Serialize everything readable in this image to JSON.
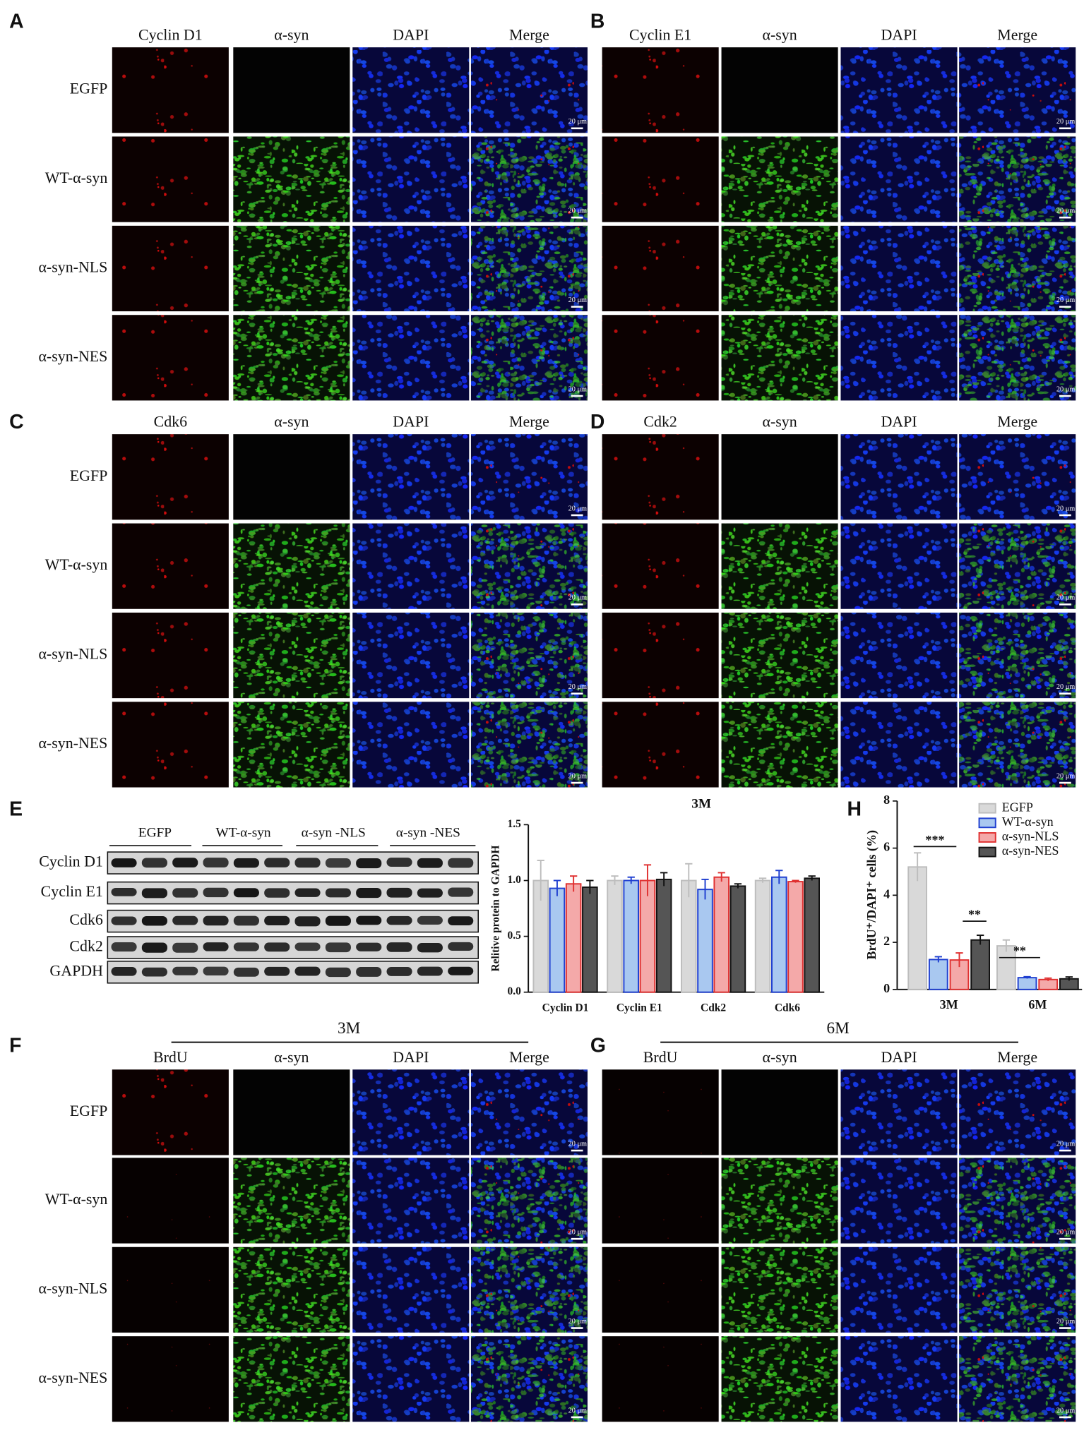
{
  "figure": {
    "panels": [
      {
        "letter": "A",
        "columns": [
          "Cyclin D1",
          "α-syn",
          "DAPI",
          "Merge"
        ],
        "rows": [
          "EGFP",
          "WT-α-syn",
          "α-syn-NLS",
          "α-syn-NES"
        ]
      },
      {
        "letter": "B",
        "columns": [
          "Cyclin E1",
          "α-syn",
          "DAPI",
          "Merge"
        ]
      },
      {
        "letter": "C",
        "columns": [
          "Cdk6",
          "α-syn",
          "DAPI",
          "Merge"
        ],
        "rows": [
          "EGFP",
          "WT-α-syn",
          "α-syn-NLS",
          "α-syn-NES"
        ]
      },
      {
        "letter": "D",
        "columns": [
          "Cdk2",
          "α-syn",
          "DAPI",
          "Merge"
        ]
      },
      {
        "letter": "F",
        "title": "3M",
        "columns": [
          "BrdU",
          "α-syn",
          "DAPI",
          "Merge"
        ],
        "rows": [
          "EGFP",
          "WT-α-syn",
          "α-syn-NLS",
          "α-syn-NES"
        ]
      },
      {
        "letter": "G",
        "title": "6M",
        "columns": [
          "BrdU",
          "α-syn",
          "DAPI",
          "Merge"
        ]
      }
    ],
    "scale_bar": "20 μm",
    "blot": {
      "letter": "E",
      "groups": [
        "EGFP",
        "WT-α-syn",
        "α-syn -NLS",
        "α-syn -NES"
      ],
      "proteins": [
        "Cyclin D1",
        "Cyclin E1",
        "Cdk6",
        "Cdk2",
        "GAPDH"
      ]
    }
  },
  "chart_data": [
    {
      "type": "bar",
      "title": "3M",
      "y_label": "Relitive protein to GAPDH",
      "categories": [
        "Cyclin D1",
        "Cyclin E1",
        "Cdk2",
        "Cdk6"
      ],
      "ylim": [
        0,
        1.5
      ],
      "yticks": [
        {
          "value": 0,
          "label": "0.0"
        },
        0.5,
        {
          "value": 1,
          "label": "1.0"
        },
        1.5
      ],
      "series": [
        {
          "color": "#d9d9d9",
          "edge_color": "#bdbdbd",
          "values": [
            1.0,
            1.0,
            1.0,
            1.0
          ],
          "errors": [
            0.18,
            0.04,
            0.15,
            0.02
          ]
        },
        {
          "color": "#a9c8f0",
          "edge_color": "#1f3fd0",
          "values": [
            0.93,
            1.0,
            0.92,
            1.03
          ],
          "errors": [
            0.07,
            0.03,
            0.09,
            0.06
          ]
        },
        {
          "color": "#f4a9a9",
          "edge_color": "#e03030",
          "values": [
            0.97,
            1.0,
            1.03,
            0.99
          ],
          "errors": [
            0.07,
            0.14,
            0.04,
            0.01
          ]
        },
        {
          "color": "#555555",
          "edge_color": "#111111",
          "values": [
            0.94,
            1.01,
            0.95,
            1.02
          ],
          "errors": [
            0.06,
            0.06,
            0.02,
            0.02
          ]
        }
      ]
    },
    {
      "type": "bar",
      "panel_label": "H",
      "y_label": "BrdU⁺/DAPI⁺ cells (%)",
      "categories": [
        "3M",
        "6M"
      ],
      "ylim": [
        0,
        8
      ],
      "yticks": [
        0,
        2,
        4,
        6,
        8
      ],
      "legend": "upper right",
      "annotations": [
        "***",
        "**",
        "**"
      ],
      "series": [
        {
          "name": "EGFP",
          "color": "#d9d9d9",
          "edge_color": "#bdbdbd",
          "values": [
            5.2,
            1.85
          ],
          "errors": [
            0.6,
            0.25
          ]
        },
        {
          "name": "WT-α-syn",
          "color": "#a9c8f0",
          "edge_color": "#1f3fd0",
          "values": [
            1.27,
            0.5
          ],
          "errors": [
            0.12,
            0.04
          ]
        },
        {
          "name": "α-syn-NLS",
          "color": "#f4a9a9",
          "edge_color": "#e03030",
          "values": [
            1.25,
            0.42
          ],
          "errors": [
            0.3,
            0.06
          ]
        },
        {
          "name": "α-syn-NES",
          "color": "#555555",
          "edge_color": "#111111",
          "values": [
            2.1,
            0.45
          ],
          "errors": [
            0.2,
            0.08
          ]
        }
      ]
    }
  ]
}
